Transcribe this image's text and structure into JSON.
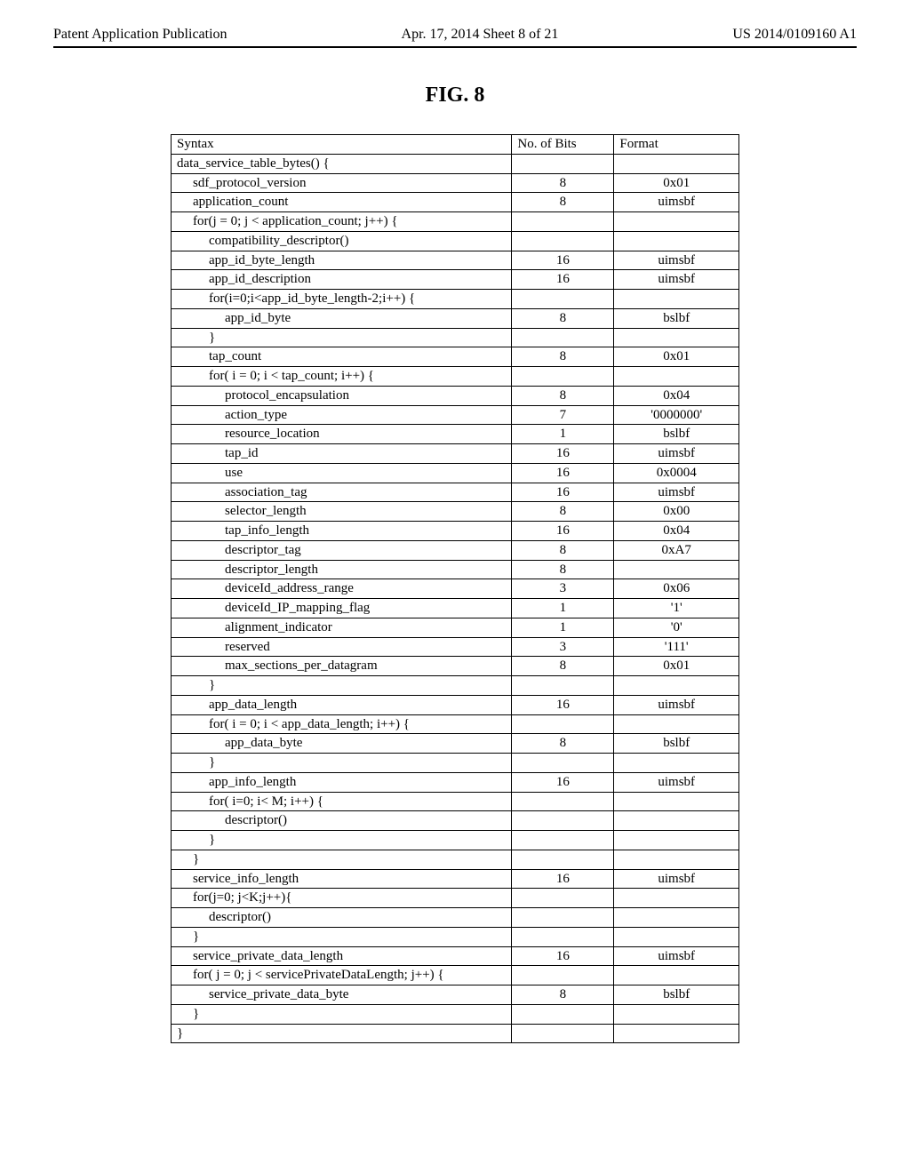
{
  "header": {
    "left": "Patent Application Publication",
    "center": "Apr. 17, 2014  Sheet 8 of 21",
    "right": "US 2014/0109160 A1"
  },
  "figure_title": "FIG. 8",
  "columns": {
    "syntax": "Syntax",
    "bits": "No. of Bits",
    "format": "Format"
  },
  "rows": [
    {
      "indent": 0,
      "syntax": "data_service_table_bytes() {",
      "bits": "",
      "format": ""
    },
    {
      "indent": 1,
      "syntax": "sdf_protocol_version",
      "bits": "8",
      "format": "0x01"
    },
    {
      "indent": 1,
      "syntax": "application_count",
      "bits": "8",
      "format": "uimsbf"
    },
    {
      "indent": 1,
      "syntax": "for(j = 0; j < application_count; j++) {",
      "bits": "",
      "format": ""
    },
    {
      "indent": 2,
      "syntax": "compatibility_descriptor()",
      "bits": "",
      "format": ""
    },
    {
      "indent": 2,
      "syntax": "app_id_byte_length",
      "bits": "16",
      "format": "uimsbf"
    },
    {
      "indent": 2,
      "syntax": "app_id_description",
      "bits": "16",
      "format": "uimsbf"
    },
    {
      "indent": 2,
      "syntax": "for(i=0;i<app_id_byte_length-2;i++) {",
      "bits": "",
      "format": ""
    },
    {
      "indent": 3,
      "syntax": "app_id_byte",
      "bits": "8",
      "format": "bslbf"
    },
    {
      "indent": 2,
      "syntax": "}",
      "bits": "",
      "format": ""
    },
    {
      "indent": 2,
      "syntax": "tap_count",
      "bits": "8",
      "format": "0x01"
    },
    {
      "indent": 2,
      "syntax": "for( i = 0; i < tap_count; i++) {",
      "bits": "",
      "format": ""
    },
    {
      "indent": 3,
      "syntax": "protocol_encapsulation",
      "bits": "8",
      "format": "0x04"
    },
    {
      "indent": 3,
      "syntax": "action_type",
      "bits": "7",
      "format": "'0000000'"
    },
    {
      "indent": 3,
      "syntax": "resource_location",
      "bits": "1",
      "format": "bslbf"
    },
    {
      "indent": 3,
      "syntax": "tap_id",
      "bits": "16",
      "format": "uimsbf"
    },
    {
      "indent": 3,
      "syntax": "use",
      "bits": "16",
      "format": "0x0004"
    },
    {
      "indent": 3,
      "syntax": "association_tag",
      "bits": "16",
      "format": "uimsbf"
    },
    {
      "indent": 3,
      "syntax": "selector_length",
      "bits": "8",
      "format": "0x00"
    },
    {
      "indent": 3,
      "syntax": "tap_info_length",
      "bits": "16",
      "format": "0x04"
    },
    {
      "indent": 3,
      "syntax": "descriptor_tag",
      "bits": "8",
      "format": "0xA7"
    },
    {
      "indent": 3,
      "syntax": "descriptor_length",
      "bits": "8",
      "format": ""
    },
    {
      "indent": 3,
      "syntax": "deviceId_address_range",
      "bits": "3",
      "format": "0x06"
    },
    {
      "indent": 3,
      "syntax": "deviceId_IP_mapping_flag",
      "bits": "1",
      "format": "'1'"
    },
    {
      "indent": 3,
      "syntax": "alignment_indicator",
      "bits": "1",
      "format": "'0'"
    },
    {
      "indent": 3,
      "syntax": "reserved",
      "bits": "3",
      "format": "'111'"
    },
    {
      "indent": 3,
      "syntax": "max_sections_per_datagram",
      "bits": "8",
      "format": "0x01"
    },
    {
      "indent": 2,
      "syntax": "}",
      "bits": "",
      "format": ""
    },
    {
      "indent": 2,
      "syntax": "app_data_length",
      "bits": "16",
      "format": "uimsbf"
    },
    {
      "indent": 2,
      "syntax": "for( i = 0; i < app_data_length; i++) {",
      "bits": "",
      "format": ""
    },
    {
      "indent": 3,
      "syntax": "app_data_byte",
      "bits": "8",
      "format": "bslbf"
    },
    {
      "indent": 2,
      "syntax": "}",
      "bits": "",
      "format": ""
    },
    {
      "indent": 2,
      "syntax": "app_info_length",
      "bits": "16",
      "format": "uimsbf"
    },
    {
      "indent": 2,
      "syntax": "for( i=0; i< M; i++) {",
      "bits": "",
      "format": ""
    },
    {
      "indent": 3,
      "syntax": "descriptor()",
      "bits": "",
      "format": ""
    },
    {
      "indent": 2,
      "syntax": "}",
      "bits": "",
      "format": ""
    },
    {
      "indent": 1,
      "syntax": "}",
      "bits": "",
      "format": ""
    },
    {
      "indent": 1,
      "syntax": "service_info_length",
      "bits": "16",
      "format": "uimsbf"
    },
    {
      "indent": 1,
      "syntax": "for(j=0; j<K;j++){",
      "bits": "",
      "format": ""
    },
    {
      "indent": 2,
      "syntax": "descriptor()",
      "bits": "",
      "format": ""
    },
    {
      "indent": 1,
      "syntax": "}",
      "bits": "",
      "format": ""
    },
    {
      "indent": 1,
      "syntax": "service_private_data_length",
      "bits": "16",
      "format": "uimsbf"
    },
    {
      "indent": 1,
      "syntax": "for( j = 0; j < servicePrivateDataLength; j++) {",
      "bits": "",
      "format": ""
    },
    {
      "indent": 2,
      "syntax": "service_private_data_byte",
      "bits": "8",
      "format": "bslbf"
    },
    {
      "indent": 1,
      "syntax": "}",
      "bits": "",
      "format": ""
    },
    {
      "indent": 0,
      "syntax": "}",
      "bits": "",
      "format": ""
    }
  ]
}
